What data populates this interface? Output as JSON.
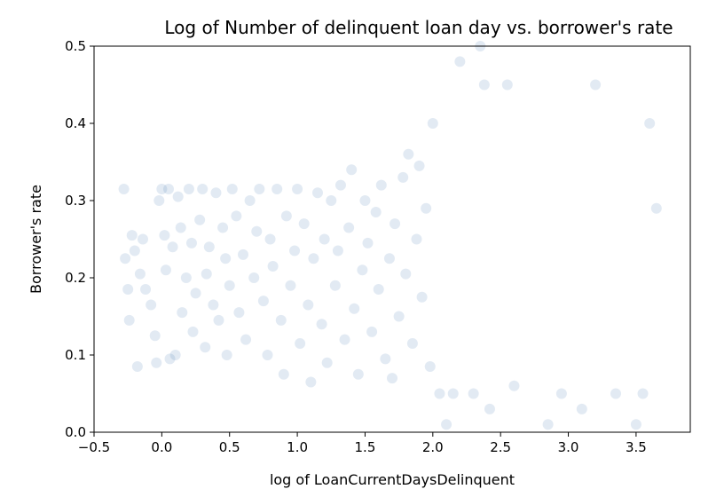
{
  "chart_data": {
    "type": "scatter",
    "title": "Log of Number of delinquent loan day vs. borrower's rate",
    "xlabel": "log of LoanCurrentDaysDelinquent",
    "ylabel": "Borrower's rate",
    "xlim": [
      -0.5,
      3.9
    ],
    "ylim": [
      0.0,
      0.5
    ],
    "x_ticks": [
      -0.5,
      0.0,
      0.5,
      1.0,
      1.5,
      2.0,
      2.5,
      3.0,
      3.5
    ],
    "x_tick_labels": [
      "−0.5",
      "0.0",
      "0.5",
      "1.0",
      "1.5",
      "2.0",
      "2.5",
      "3.0",
      "3.5"
    ],
    "y_ticks": [
      0.0,
      0.1,
      0.2,
      0.3,
      0.4,
      0.5
    ],
    "y_tick_labels": [
      "0.0",
      "0.1",
      "0.2",
      "0.3",
      "0.4",
      "0.5"
    ],
    "grid": false,
    "marker_color": "#3a73b0",
    "marker_alpha": 0.15,
    "points": [
      [
        -0.28,
        0.315
      ],
      [
        -0.27,
        0.225
      ],
      [
        -0.25,
        0.185
      ],
      [
        -0.24,
        0.145
      ],
      [
        -0.22,
        0.255
      ],
      [
        -0.2,
        0.235
      ],
      [
        -0.18,
        0.085
      ],
      [
        -0.16,
        0.205
      ],
      [
        -0.14,
        0.25
      ],
      [
        -0.12,
        0.185
      ],
      [
        -0.08,
        0.165
      ],
      [
        -0.05,
        0.125
      ],
      [
        -0.04,
        0.09
      ],
      [
        -0.02,
        0.3
      ],
      [
        0.0,
        0.315
      ],
      [
        0.02,
        0.255
      ],
      [
        0.03,
        0.21
      ],
      [
        0.05,
        0.315
      ],
      [
        0.06,
        0.095
      ],
      [
        0.08,
        0.24
      ],
      [
        0.1,
        0.1
      ],
      [
        0.12,
        0.305
      ],
      [
        0.14,
        0.265
      ],
      [
        0.15,
        0.155
      ],
      [
        0.18,
        0.2
      ],
      [
        0.2,
        0.315
      ],
      [
        0.22,
        0.245
      ],
      [
        0.23,
        0.13
      ],
      [
        0.25,
        0.18
      ],
      [
        0.28,
        0.275
      ],
      [
        0.3,
        0.315
      ],
      [
        0.32,
        0.11
      ],
      [
        0.33,
        0.205
      ],
      [
        0.35,
        0.24
      ],
      [
        0.38,
        0.165
      ],
      [
        0.4,
        0.31
      ],
      [
        0.42,
        0.145
      ],
      [
        0.45,
        0.265
      ],
      [
        0.47,
        0.225
      ],
      [
        0.48,
        0.1
      ],
      [
        0.5,
        0.19
      ],
      [
        0.52,
        0.315
      ],
      [
        0.55,
        0.28
      ],
      [
        0.57,
        0.155
      ],
      [
        0.6,
        0.23
      ],
      [
        0.62,
        0.12
      ],
      [
        0.65,
        0.3
      ],
      [
        0.68,
        0.2
      ],
      [
        0.7,
        0.26
      ],
      [
        0.72,
        0.315
      ],
      [
        0.75,
        0.17
      ],
      [
        0.78,
        0.1
      ],
      [
        0.8,
        0.25
      ],
      [
        0.82,
        0.215
      ],
      [
        0.85,
        0.315
      ],
      [
        0.88,
        0.145
      ],
      [
        0.9,
        0.075
      ],
      [
        0.92,
        0.28
      ],
      [
        0.95,
        0.19
      ],
      [
        0.98,
        0.235
      ],
      [
        1.0,
        0.315
      ],
      [
        1.02,
        0.115
      ],
      [
        1.05,
        0.27
      ],
      [
        1.08,
        0.165
      ],
      [
        1.1,
        0.065
      ],
      [
        1.12,
        0.225
      ],
      [
        1.15,
        0.31
      ],
      [
        1.18,
        0.14
      ],
      [
        1.2,
        0.25
      ],
      [
        1.22,
        0.09
      ],
      [
        1.25,
        0.3
      ],
      [
        1.28,
        0.19
      ],
      [
        1.3,
        0.235
      ],
      [
        1.32,
        0.32
      ],
      [
        1.35,
        0.12
      ],
      [
        1.38,
        0.265
      ],
      [
        1.4,
        0.34
      ],
      [
        1.42,
        0.16
      ],
      [
        1.45,
        0.075
      ],
      [
        1.48,
        0.21
      ],
      [
        1.5,
        0.3
      ],
      [
        1.52,
        0.245
      ],
      [
        1.55,
        0.13
      ],
      [
        1.58,
        0.285
      ],
      [
        1.6,
        0.185
      ],
      [
        1.62,
        0.32
      ],
      [
        1.65,
        0.095
      ],
      [
        1.68,
        0.225
      ],
      [
        1.7,
        0.07
      ],
      [
        1.72,
        0.27
      ],
      [
        1.75,
        0.15
      ],
      [
        1.78,
        0.33
      ],
      [
        1.8,
        0.205
      ],
      [
        1.82,
        0.36
      ],
      [
        1.85,
        0.115
      ],
      [
        1.88,
        0.25
      ],
      [
        1.9,
        0.345
      ],
      [
        1.92,
        0.175
      ],
      [
        1.95,
        0.29
      ],
      [
        1.98,
        0.085
      ],
      [
        2.0,
        0.4
      ],
      [
        2.05,
        0.05
      ],
      [
        2.1,
        0.01
      ],
      [
        2.15,
        0.05
      ],
      [
        2.2,
        0.48
      ],
      [
        2.3,
        0.05
      ],
      [
        2.35,
        0.5
      ],
      [
        2.38,
        0.45
      ],
      [
        2.42,
        0.03
      ],
      [
        2.55,
        0.45
      ],
      [
        2.6,
        0.06
      ],
      [
        2.85,
        0.01
      ],
      [
        2.95,
        0.05
      ],
      [
        3.1,
        0.03
      ],
      [
        3.2,
        0.45
      ],
      [
        3.35,
        0.05
      ],
      [
        3.5,
        0.01
      ],
      [
        3.55,
        0.05
      ],
      [
        3.6,
        0.4
      ],
      [
        3.65,
        0.29
      ]
    ]
  }
}
